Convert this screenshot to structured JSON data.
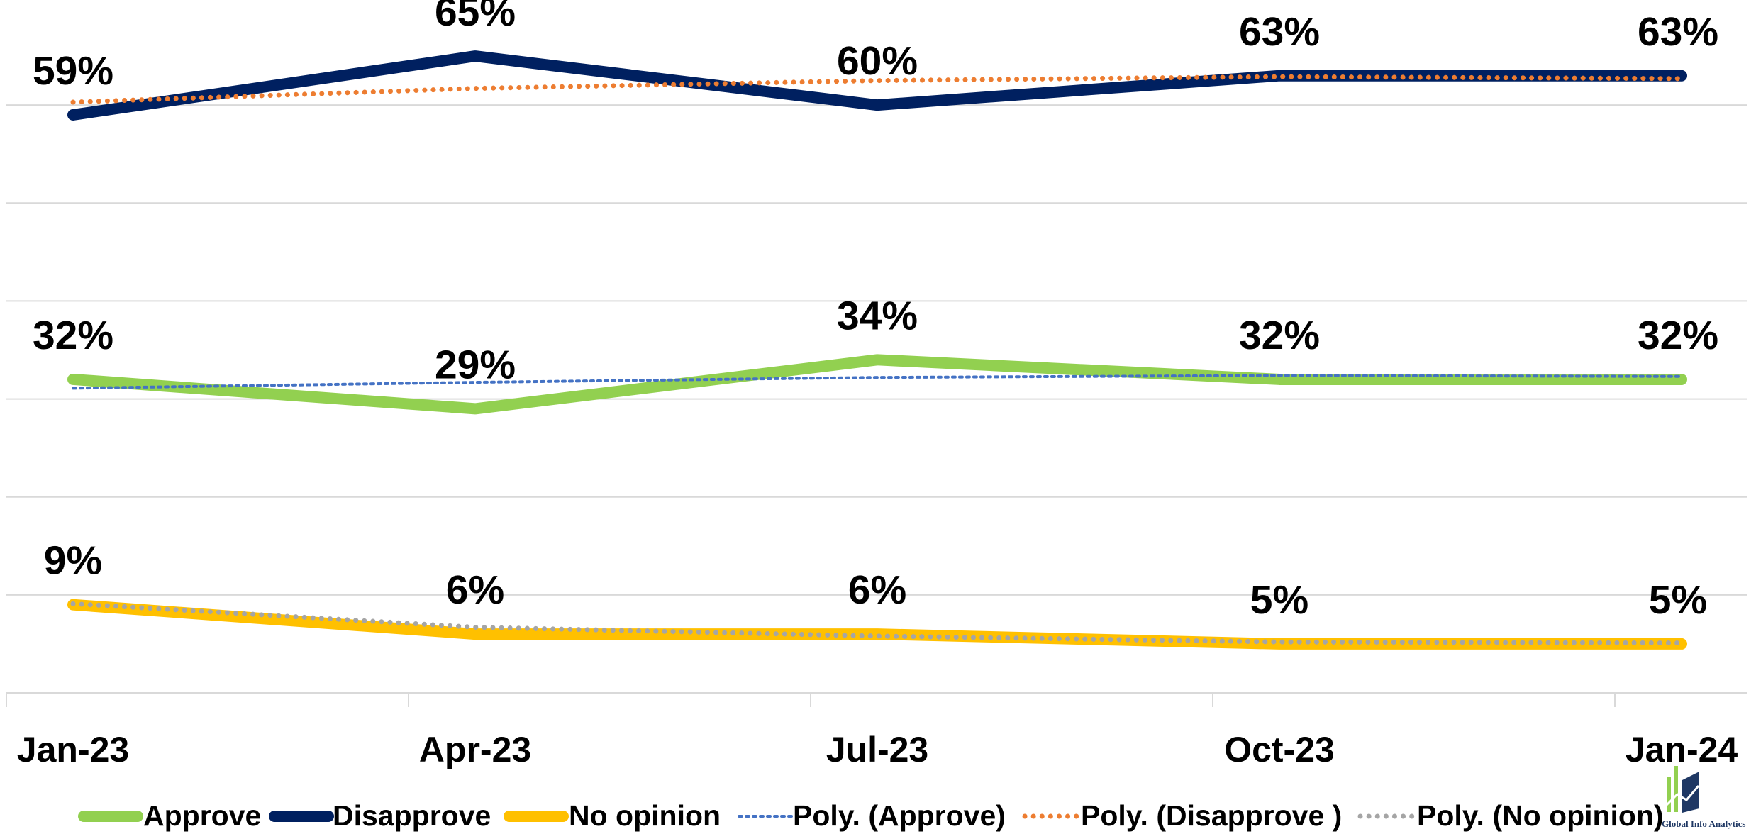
{
  "chart_data": {
    "type": "line",
    "categories": [
      "Jan-23",
      "Apr-23",
      "Jul-23",
      "Oct-23",
      "Jan-24"
    ],
    "series": [
      {
        "name": "Approve",
        "color": "#92d050",
        "values": [
          32,
          29,
          34,
          32,
          32
        ],
        "value_labels": [
          "32%",
          "29%",
          "34%",
          "32%",
          "32%"
        ]
      },
      {
        "name": "Disapprove",
        "color": "#002060",
        "values": [
          59,
          65,
          60,
          63,
          63
        ],
        "value_labels": [
          "59%",
          "65%",
          "60%",
          "63%",
          "63%"
        ]
      },
      {
        "name": "No opinion",
        "color": "#ffc000",
        "values": [
          9,
          6,
          6,
          5,
          5
        ],
        "value_labels": [
          "9%",
          "6%",
          "6%",
          "5%",
          "5%"
        ]
      },
      {
        "name": "Poly. (Approve)",
        "color": "#4472c4",
        "dash": "dotted",
        "values": [
          31.1,
          31.7,
          32.2,
          32.4,
          32.3
        ]
      },
      {
        "name": "Poly. (Disapprove )",
        "color": "#ed7d31",
        "dash": "dotted",
        "values": [
          60.3,
          61.7,
          62.5,
          62.9,
          62.7
        ]
      },
      {
        "name": "Poly. (No opinion)",
        "color": "#a5a5a5",
        "dash": "dotted",
        "values": [
          9.1,
          6.7,
          5.8,
          5.2,
          5.1
        ]
      }
    ],
    "ylim": [
      0,
      70
    ],
    "yticks": [
      10,
      20,
      30,
      40,
      50,
      60
    ],
    "grid": true,
    "legend": "bottom",
    "watermark": "Global Info Analytics"
  }
}
